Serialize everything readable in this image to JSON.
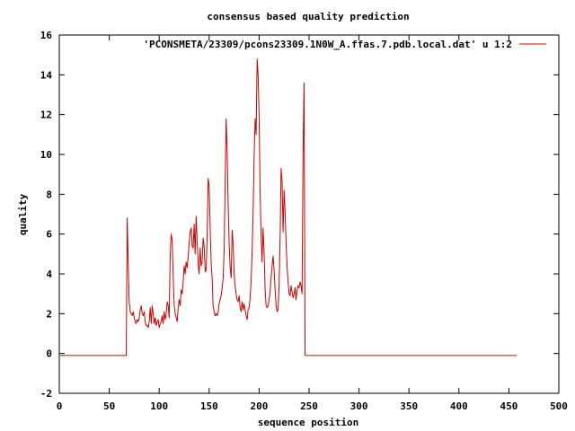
{
  "chart_data": {
    "type": "line",
    "title": "consensus based quality prediction",
    "xlabel": "sequence position",
    "ylabel": "quality",
    "xlim": [
      0,
      500
    ],
    "ylim": [
      -2,
      16
    ],
    "xticks": [
      "0",
      "50",
      "100",
      "150",
      "200",
      "250",
      "300",
      "350",
      "400",
      "450",
      "500"
    ],
    "yticks": [
      "-2",
      "0",
      "2",
      "4",
      "6",
      "8",
      "10",
      "12",
      "14",
      "16"
    ],
    "grid": false,
    "legend_position": "top-right",
    "series": [
      {
        "name": "'PCONSMETA/23309/pcons23309.1N0W_A.ffas.7.pdb.local.dat' u 1:2",
        "color": "#cc0000",
        "points": [
          [
            1,
            -0.1
          ],
          [
            67,
            -0.1
          ],
          [
            68,
            6.8
          ],
          [
            69,
            4.5
          ],
          [
            70,
            2.6
          ],
          [
            71,
            2.1
          ],
          [
            72,
            2.0
          ],
          [
            73,
            1.9
          ],
          [
            74,
            2.1
          ],
          [
            75,
            1.8
          ],
          [
            76,
            1.6
          ],
          [
            77,
            1.5
          ],
          [
            78,
            1.7
          ],
          [
            79,
            1.6
          ],
          [
            80,
            1.8
          ],
          [
            81,
            2.2
          ],
          [
            82,
            2.4
          ],
          [
            83,
            2.0
          ],
          [
            84,
            1.9
          ],
          [
            85,
            2.1
          ],
          [
            86,
            1.6
          ],
          [
            87,
            1.4
          ],
          [
            88,
            1.4
          ],
          [
            89,
            1.3
          ],
          [
            90,
            1.6
          ],
          [
            91,
            2.3
          ],
          [
            92,
            1.5
          ],
          [
            93,
            2.4
          ],
          [
            94,
            2.0
          ],
          [
            95,
            1.5
          ],
          [
            96,
            1.8
          ],
          [
            97,
            1.4
          ],
          [
            98,
            1.6
          ],
          [
            99,
            1.7
          ],
          [
            100,
            1.3
          ],
          [
            101,
            1.5
          ],
          [
            102,
            1.6
          ],
          [
            103,
            1.9
          ],
          [
            104,
            1.5
          ],
          [
            105,
            2.1
          ],
          [
            106,
            1.7
          ],
          [
            107,
            2.0
          ],
          [
            108,
            2.6
          ],
          [
            109,
            2.4
          ],
          [
            110,
            1.8
          ],
          [
            111,
            4.8
          ],
          [
            112,
            6.0
          ],
          [
            113,
            5.7
          ],
          [
            114,
            3.8
          ],
          [
            115,
            2.4
          ],
          [
            116,
            2.0
          ],
          [
            117,
            1.8
          ],
          [
            118,
            1.6
          ],
          [
            119,
            2.3
          ],
          [
            120,
            2.7
          ],
          [
            121,
            2.4
          ],
          [
            122,
            3.2
          ],
          [
            123,
            3.0
          ],
          [
            124,
            3.6
          ],
          [
            125,
            4.4
          ],
          [
            126,
            4.0
          ],
          [
            127,
            4.6
          ],
          [
            128,
            4.3
          ],
          [
            129,
            4.8
          ],
          [
            130,
            5.6
          ],
          [
            131,
            6.1
          ],
          [
            132,
            6.3
          ],
          [
            133,
            5.4
          ],
          [
            134,
            5.3
          ],
          [
            135,
            6.5
          ],
          [
            136,
            5.0
          ],
          [
            137,
            6.9
          ],
          [
            138,
            5.6
          ],
          [
            139,
            4.5
          ],
          [
            140,
            4.0
          ],
          [
            141,
            5.3
          ],
          [
            142,
            4.4
          ],
          [
            143,
            4.6
          ],
          [
            144,
            5.8
          ],
          [
            145,
            5.4
          ],
          [
            146,
            4.1
          ],
          [
            147,
            4.2
          ],
          [
            148,
            6.0
          ],
          [
            149,
            8.8
          ],
          [
            150,
            8.4
          ],
          [
            151,
            6.4
          ],
          [
            152,
            4.6
          ],
          [
            153,
            3.8
          ],
          [
            154,
            2.4
          ],
          [
            155,
            2.1
          ],
          [
            156,
            1.9
          ],
          [
            157,
            2.0
          ],
          [
            158,
            1.9
          ],
          [
            159,
            2.1
          ],
          [
            160,
            2.5
          ],
          [
            161,
            2.7
          ],
          [
            162,
            2.9
          ],
          [
            163,
            3.3
          ],
          [
            164,
            3.8
          ],
          [
            165,
            5.2
          ],
          [
            166,
            8.5
          ],
          [
            167,
            11.8
          ],
          [
            168,
            10.2
          ],
          [
            169,
            7.6
          ],
          [
            170,
            5.6
          ],
          [
            171,
            4.3
          ],
          [
            172,
            3.8
          ],
          [
            173,
            6.2
          ],
          [
            174,
            5.5
          ],
          [
            175,
            4.0
          ],
          [
            176,
            3.4
          ],
          [
            177,
            3.0
          ],
          [
            178,
            2.7
          ],
          [
            179,
            2.6
          ],
          [
            180,
            2.9
          ],
          [
            181,
            2.3
          ],
          [
            182,
            2.1
          ],
          [
            183,
            2.6
          ],
          [
            184,
            2.2
          ],
          [
            185,
            2.5
          ],
          [
            186,
            2.2
          ],
          [
            187,
            1.9
          ],
          [
            188,
            1.7
          ],
          [
            189,
            2.2
          ],
          [
            190,
            2.3
          ],
          [
            191,
            2.8
          ],
          [
            192,
            3.6
          ],
          [
            193,
            5.1
          ],
          [
            194,
            7.0
          ],
          [
            195,
            9.8
          ],
          [
            196,
            11.8
          ],
          [
            197,
            11.0
          ],
          [
            198,
            14.8
          ],
          [
            199,
            14.0
          ],
          [
            200,
            11.9
          ],
          [
            201,
            8.2
          ],
          [
            202,
            6.0
          ],
          [
            203,
            4.6
          ],
          [
            204,
            6.3
          ],
          [
            205,
            5.0
          ],
          [
            206,
            3.2
          ],
          [
            207,
            2.4
          ],
          [
            208,
            2.3
          ],
          [
            209,
            2.4
          ],
          [
            210,
            2.7
          ],
          [
            211,
            3.1
          ],
          [
            212,
            3.8
          ],
          [
            213,
            4.4
          ],
          [
            214,
            4.9
          ],
          [
            215,
            4.2
          ],
          [
            216,
            3.2
          ],
          [
            217,
            2.4
          ],
          [
            218,
            2.1
          ],
          [
            219,
            2.2
          ],
          [
            220,
            3.4
          ],
          [
            221,
            5.8
          ],
          [
            222,
            9.3
          ],
          [
            223,
            8.6
          ],
          [
            224,
            6.1
          ],
          [
            225,
            8.2
          ],
          [
            226,
            7.2
          ],
          [
            227,
            5.6
          ],
          [
            228,
            4.4
          ],
          [
            229,
            3.6
          ],
          [
            230,
            3.0
          ],
          [
            231,
            2.9
          ],
          [
            232,
            3.4
          ],
          [
            233,
            3.1
          ],
          [
            234,
            2.8
          ],
          [
            235,
            3.0
          ],
          [
            236,
            3.3
          ],
          [
            237,
            2.7
          ],
          [
            238,
            3.2
          ],
          [
            239,
            3.4
          ],
          [
            240,
            3.3
          ],
          [
            241,
            3.6
          ],
          [
            242,
            3.4
          ],
          [
            243,
            3.0
          ],
          [
            244,
            9.9
          ],
          [
            245,
            13.6
          ],
          [
            246,
            -0.1
          ],
          [
            458,
            -0.1
          ]
        ]
      }
    ]
  }
}
